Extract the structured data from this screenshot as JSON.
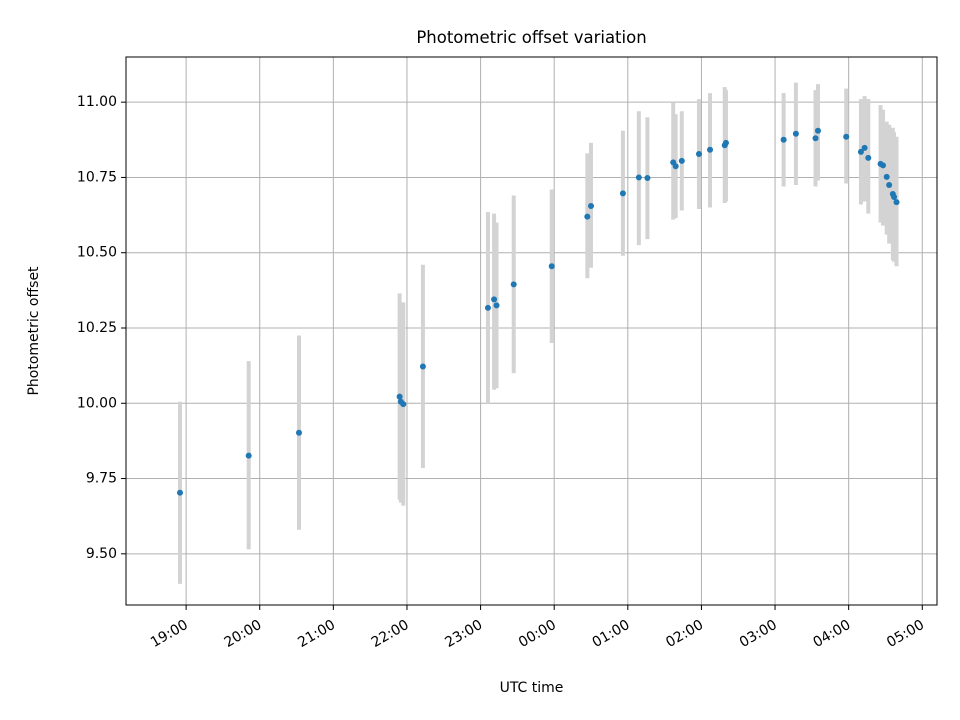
{
  "chart_data": {
    "type": "scatter",
    "title": "Photometric offset variation",
    "xlabel": "UTC time",
    "ylabel": "Photometric offset",
    "x_axis": "time",
    "x_domain": [
      "2024-01-01T18:11:00",
      "2024-01-02T05:12:00"
    ],
    "ylim": [
      9.33,
      11.15
    ],
    "x_ticks": [
      {
        "t": "2024-01-01T19:00",
        "label": "19:00"
      },
      {
        "t": "2024-01-01T20:00",
        "label": "20:00"
      },
      {
        "t": "2024-01-01T21:00",
        "label": "21:00"
      },
      {
        "t": "2024-01-01T22:00",
        "label": "22:00"
      },
      {
        "t": "2024-01-01T23:00",
        "label": "23:00"
      },
      {
        "t": "2024-01-02T00:00",
        "label": "00:00"
      },
      {
        "t": "2024-01-02T01:00",
        "label": "01:00"
      },
      {
        "t": "2024-01-02T02:00",
        "label": "02:00"
      },
      {
        "t": "2024-01-02T03:00",
        "label": "03:00"
      },
      {
        "t": "2024-01-02T04:00",
        "label": "04:00"
      },
      {
        "t": "2024-01-02T05:00",
        "label": "05:00"
      }
    ],
    "y_ticks": [
      {
        "v": 9.5,
        "label": "9.50"
      },
      {
        "v": 9.75,
        "label": "9.75"
      },
      {
        "v": 10.0,
        "label": "10.00"
      },
      {
        "v": 10.25,
        "label": "10.25"
      },
      {
        "v": 10.5,
        "label": "10.50"
      },
      {
        "v": 10.75,
        "label": "10.75"
      },
      {
        "v": 11.0,
        "label": "11.00"
      }
    ],
    "grid": true,
    "colors": {
      "point": "#1f77b4",
      "errorbar": "#d3d3d3",
      "grid": "#b0b0b0"
    },
    "points": [
      {
        "t": "2024-01-01T18:55",
        "y": 9.703,
        "lo": 9.4,
        "hi": 10.005
      },
      {
        "t": "2024-01-01T19:51",
        "y": 9.826,
        "lo": 9.515,
        "hi": 10.14
      },
      {
        "t": "2024-01-01T20:32",
        "y": 9.902,
        "lo": 9.58,
        "hi": 10.225
      },
      {
        "t": "2024-01-01T21:54",
        "y": 10.022,
        "lo": 9.68,
        "hi": 10.365
      },
      {
        "t": "2024-01-01T21:55",
        "y": 10.005,
        "lo": 9.67,
        "hi": 10.33
      },
      {
        "t": "2024-01-01T21:57",
        "y": 9.997,
        "lo": 9.66,
        "hi": 10.335
      },
      {
        "t": "2024-01-01T22:13",
        "y": 10.122,
        "lo": 9.785,
        "hi": 10.46
      },
      {
        "t": "2024-01-01T23:06",
        "y": 10.317,
        "lo": 10.0,
        "hi": 10.635
      },
      {
        "t": "2024-01-01T23:11",
        "y": 10.345,
        "lo": 10.045,
        "hi": 10.63
      },
      {
        "t": "2024-01-01T23:13",
        "y": 10.325,
        "lo": 10.05,
        "hi": 10.6
      },
      {
        "t": "2024-01-01T23:27",
        "y": 10.395,
        "lo": 10.1,
        "hi": 10.69
      },
      {
        "t": "2024-01-01T23:58",
        "y": 10.455,
        "lo": 10.2,
        "hi": 10.71
      },
      {
        "t": "2024-01-02T00:27",
        "y": 10.62,
        "lo": 10.415,
        "hi": 10.83
      },
      {
        "t": "2024-01-02T00:30",
        "y": 10.655,
        "lo": 10.45,
        "hi": 10.865
      },
      {
        "t": "2024-01-02T00:56",
        "y": 10.697,
        "lo": 10.49,
        "hi": 10.905
      },
      {
        "t": "2024-01-02T01:09",
        "y": 10.75,
        "lo": 10.525,
        "hi": 10.97
      },
      {
        "t": "2024-01-02T01:16",
        "y": 10.748,
        "lo": 10.545,
        "hi": 10.95
      },
      {
        "t": "2024-01-02T01:37",
        "y": 10.8,
        "lo": 10.61,
        "hi": 11.0
      },
      {
        "t": "2024-01-02T01:39",
        "y": 10.787,
        "lo": 10.615,
        "hi": 10.96
      },
      {
        "t": "2024-01-02T01:44",
        "y": 10.805,
        "lo": 10.64,
        "hi": 10.97
      },
      {
        "t": "2024-01-02T01:58",
        "y": 10.828,
        "lo": 10.645,
        "hi": 11.01
      },
      {
        "t": "2024-01-02T02:07",
        "y": 10.842,
        "lo": 10.65,
        "hi": 11.03
      },
      {
        "t": "2024-01-02T02:19",
        "y": 10.857,
        "lo": 10.665,
        "hi": 11.05
      },
      {
        "t": "2024-01-02T02:20",
        "y": 10.865,
        "lo": 10.67,
        "hi": 11.04
      },
      {
        "t": "2024-01-02T03:07",
        "y": 10.875,
        "lo": 10.72,
        "hi": 11.03
      },
      {
        "t": "2024-01-02T03:17",
        "y": 10.895,
        "lo": 10.725,
        "hi": 11.065
      },
      {
        "t": "2024-01-02T03:33",
        "y": 10.88,
        "lo": 10.72,
        "hi": 11.04
      },
      {
        "t": "2024-01-02T03:35",
        "y": 10.905,
        "lo": 10.74,
        "hi": 11.06
      },
      {
        "t": "2024-01-02T03:58",
        "y": 10.885,
        "lo": 10.73,
        "hi": 11.045
      },
      {
        "t": "2024-01-02T04:10",
        "y": 10.835,
        "lo": 10.66,
        "hi": 11.01
      },
      {
        "t": "2024-01-02T04:13",
        "y": 10.848,
        "lo": 10.67,
        "hi": 11.02
      },
      {
        "t": "2024-01-02T04:16",
        "y": 10.815,
        "lo": 10.63,
        "hi": 11.01
      },
      {
        "t": "2024-01-02T04:26",
        "y": 10.795,
        "lo": 10.6,
        "hi": 10.99
      },
      {
        "t": "2024-01-02T04:28",
        "y": 10.79,
        "lo": 10.59,
        "hi": 10.975
      },
      {
        "t": "2024-01-02T04:31",
        "y": 10.752,
        "lo": 10.56,
        "hi": 10.935
      },
      {
        "t": "2024-01-02T04:33",
        "y": 10.725,
        "lo": 10.53,
        "hi": 10.925
      },
      {
        "t": "2024-01-02T04:36",
        "y": 10.695,
        "lo": 10.475,
        "hi": 10.915
      },
      {
        "t": "2024-01-02T04:37",
        "y": 10.685,
        "lo": 10.47,
        "hi": 10.9
      },
      {
        "t": "2024-01-02T04:39",
        "y": 10.668,
        "lo": 10.455,
        "hi": 10.885
      }
    ]
  }
}
